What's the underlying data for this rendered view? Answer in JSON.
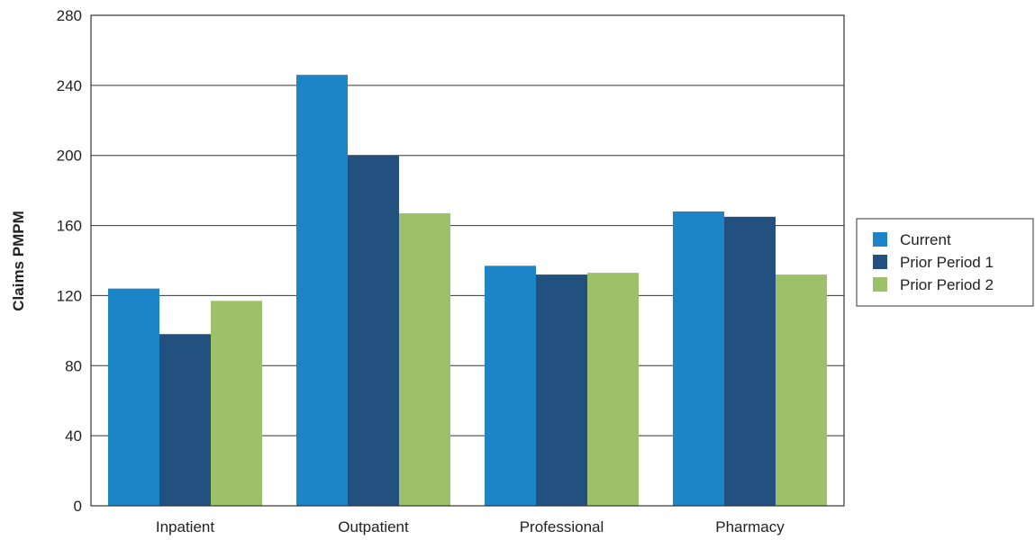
{
  "chart_data": {
    "type": "bar",
    "title": "",
    "xlabel": "",
    "ylabel": "Claims PMPM",
    "ylim": [
      0,
      280
    ],
    "yticks": [
      0,
      40,
      80,
      120,
      160,
      200,
      240,
      280
    ],
    "grid": true,
    "legend_position": "right",
    "categories": [
      "Inpatient",
      "Outpatient",
      "Professional",
      "Pharmacy"
    ],
    "series": [
      {
        "name": "Current",
        "color": "#1c85c8",
        "values": [
          124,
          246,
          137,
          168
        ]
      },
      {
        "name": "Prior Period 1",
        "color": "#22507f",
        "values": [
          98,
          200,
          132,
          165
        ]
      },
      {
        "name": "Prior Period 2",
        "color": "#9dc169",
        "values": [
          117,
          167,
          133,
          132
        ]
      }
    ]
  }
}
